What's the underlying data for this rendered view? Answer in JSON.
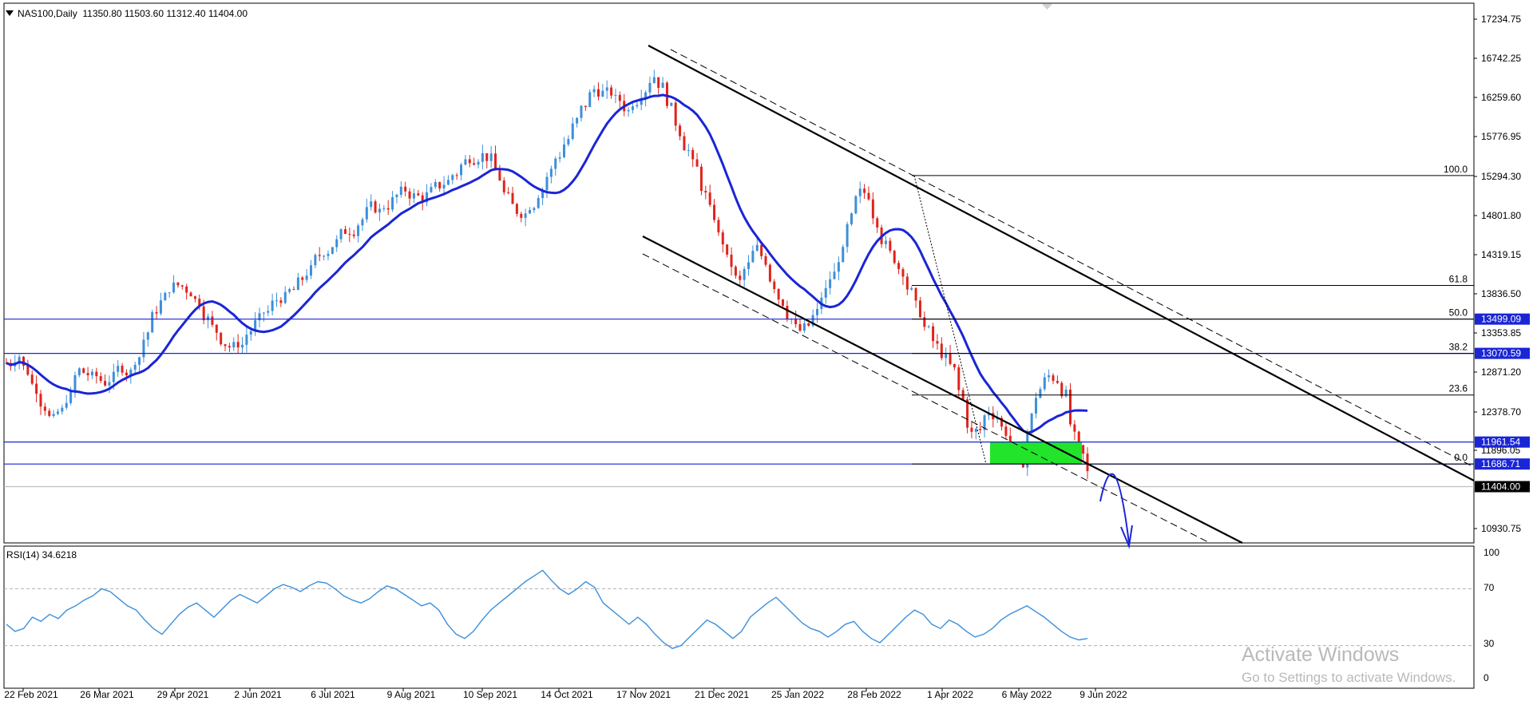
{
  "header": {
    "symbol": "NAS100,Daily",
    "ohlc": "11350.80 11503.60 11312.40 11404.00"
  },
  "rsi_header": "RSI(14) 34.6218",
  "watermark": {
    "line1": "Activate Windows",
    "line2": "Go to Settings to activate Windows."
  },
  "colors": {
    "bull": "#3d8fd9",
    "bear": "#e0231c",
    "ma": "#1a25d6",
    "hline": "#1a25d6",
    "rsi": "#3d8fd9",
    "zone": "#22e42a"
  },
  "chart_data": [
    {
      "type": "line",
      "name": "price",
      "symbol": "NAS100",
      "timeframe": "Daily",
      "ylim": [
        10700,
        17450
      ],
      "y_ticks": [
        "17234.75",
        "16742.25",
        "16259.60",
        "15776.95",
        "15294.30",
        "14801.80",
        "14319.15",
        "13836.50",
        "13353.85",
        "12871.20",
        "12378.70",
        "11896.05",
        "10930.75"
      ],
      "x_ticks": [
        "22 Feb 2021",
        "26 Mar 2021",
        "29 Apr 2021",
        "2 Jun 2021",
        "6 Jul 2021",
        "9 Aug 2021",
        "10 Sep 2021",
        "14 Oct 2021",
        "17 Nov 2021",
        "21 Dec 2021",
        "25 Jan 2022",
        "28 Feb 2022",
        "1 Apr 2022",
        "6 May 2022",
        "9 Jun 2022"
      ],
      "horizontal_levels": [
        {
          "label": "13499.09",
          "value": 13499.09
        },
        {
          "label": "13070.59",
          "value": 13070.59
        },
        {
          "label": "11961.54",
          "value": 11961.54
        },
        {
          "label": "11686.71",
          "value": 11686.71
        },
        {
          "label": "11404.00",
          "value": 11404.0
        }
      ],
      "fibonacci": [
        {
          "label": "100.0",
          "value": 15294.3
        },
        {
          "label": "61.8",
          "value": 13920
        },
        {
          "label": "50.0",
          "value": 13499.09
        },
        {
          "label": "38.2",
          "value": 13070.59
        },
        {
          "label": "23.6",
          "value": 12550
        },
        {
          "label": "0.0",
          "value": 11686.71
        }
      ],
      "close_series": [
        12950,
        13100,
        12800,
        12600,
        12400,
        12200,
        12350,
        12600,
        12900,
        12800,
        12750,
        12700,
        12800,
        12900,
        12850,
        13100,
        13400,
        13650,
        13800,
        13950,
        13900,
        13850,
        13700,
        13500,
        13300,
        13200,
        13150,
        13200,
        13400,
        13500,
        13600,
        13750,
        13800,
        13850,
        14000,
        14150,
        14300,
        14400,
        14500,
        14600,
        14650,
        14800,
        14900,
        14850,
        14950,
        15050,
        15100,
        15050,
        15000,
        15100,
        15150,
        15250,
        15350,
        15500,
        15550,
        15600,
        15500,
        15200,
        14950,
        14800,
        14850,
        15000,
        15200,
        15400,
        15600,
        15800,
        16000,
        16200,
        16400,
        16350,
        16300,
        16200,
        16100,
        16300,
        16450,
        16600,
        16400,
        16100,
        15800,
        15600,
        15300,
        15000,
        14700,
        14400,
        14100,
        13900,
        14200,
        14400,
        14200,
        13900,
        13700,
        13500,
        13300,
        13400,
        13600,
        13900,
        14100,
        14400,
        14800,
        15100,
        15050,
        14700,
        14400,
        14200,
        14100,
        13800,
        13500,
        13300,
        13100,
        13000,
        12800,
        12400,
        12000,
        12100,
        12400,
        12300,
        12050,
        11800,
        11650,
        12400,
        12700,
        12800,
        12750,
        12550,
        11900,
        11700,
        11404
      ]
    },
    {
      "type": "line",
      "name": "RSI(14)",
      "ylim": [
        0,
        100
      ],
      "y_ticks": [
        "100",
        "70",
        "30",
        "0"
      ],
      "levels": [
        70,
        30
      ],
      "values": [
        45,
        40,
        42,
        50,
        47,
        52,
        49,
        55,
        58,
        62,
        65,
        70,
        68,
        63,
        58,
        55,
        48,
        42,
        38,
        45,
        52,
        57,
        60,
        55,
        50,
        56,
        62,
        66,
        63,
        60,
        65,
        70,
        73,
        71,
        68,
        72,
        75,
        74,
        70,
        65,
        62,
        60,
        63,
        68,
        72,
        70,
        66,
        62,
        58,
        60,
        55,
        45,
        38,
        35,
        40,
        48,
        55,
        60,
        65,
        70,
        75,
        79,
        83,
        76,
        70,
        66,
        70,
        75,
        71,
        60,
        55,
        50,
        45,
        50,
        45,
        38,
        32,
        28,
        30,
        36,
        42,
        48,
        45,
        40,
        35,
        40,
        50,
        55,
        60,
        64,
        58,
        52,
        46,
        42,
        40,
        36,
        40,
        45,
        47,
        40,
        35,
        32,
        38,
        44,
        50,
        55,
        52,
        45,
        42,
        48,
        45,
        40,
        36,
        38,
        42,
        48,
        52,
        55,
        58,
        54,
        50,
        45,
        40,
        36,
        34,
        35
      ]
    }
  ]
}
